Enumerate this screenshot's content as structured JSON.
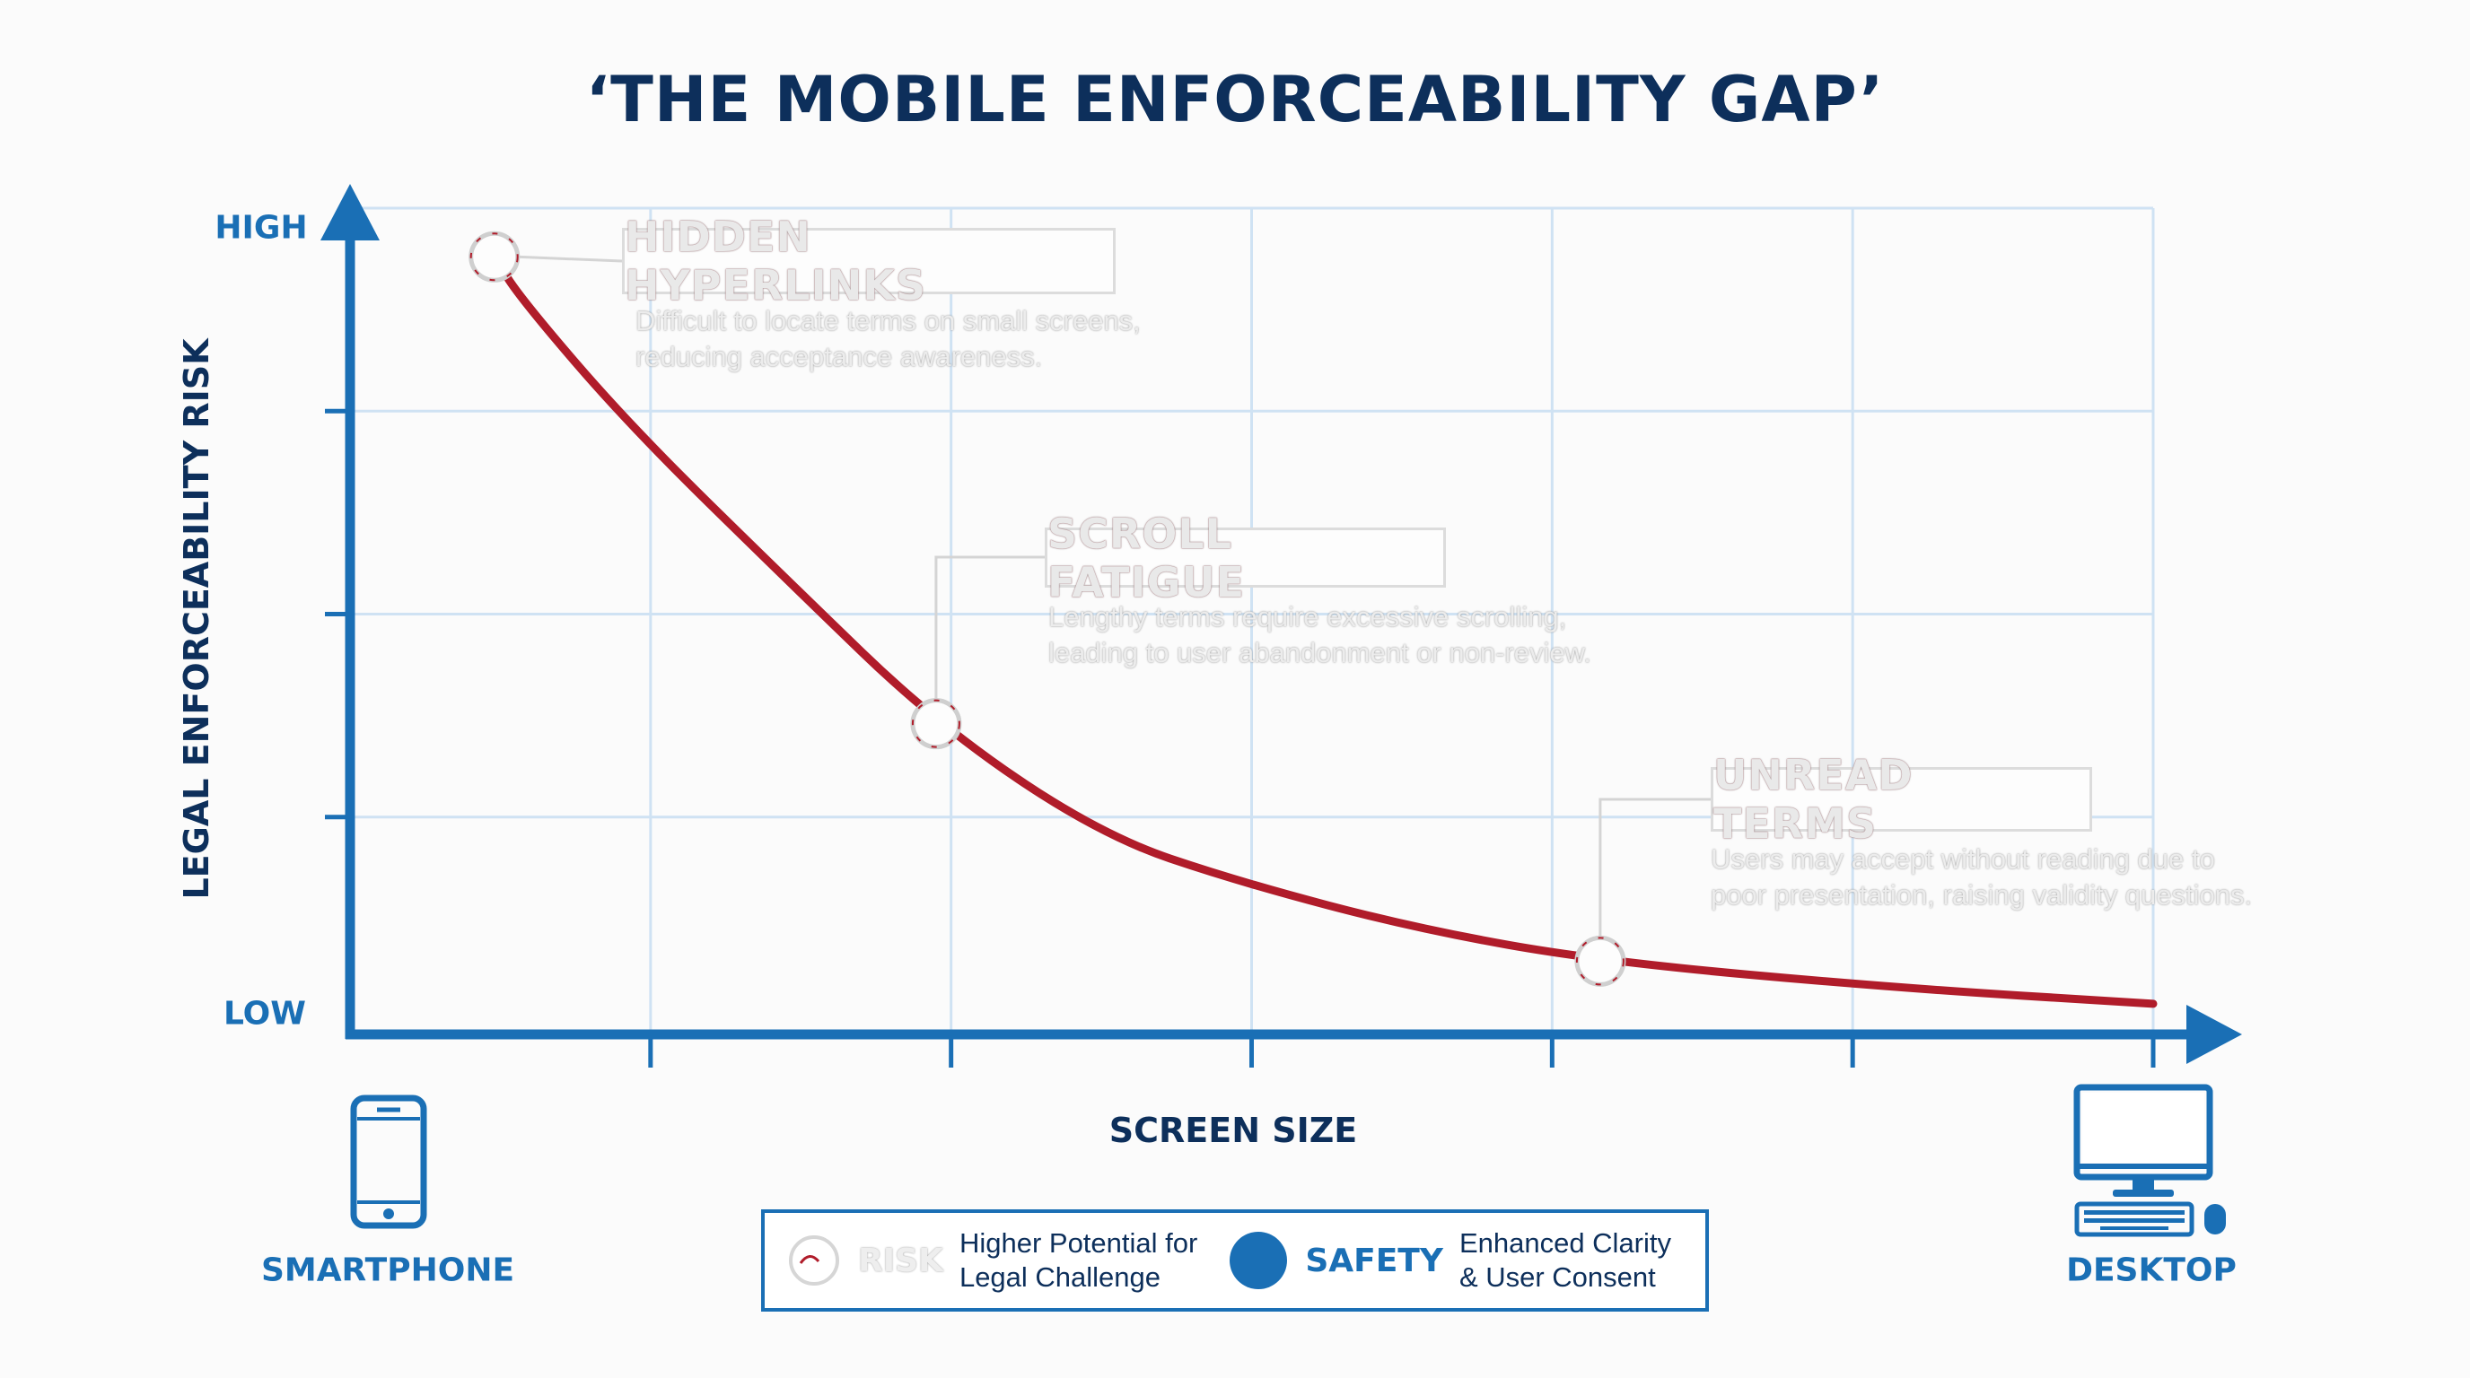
{
  "chart_data": {
    "type": "line",
    "title": "‘THE MOBILE ENFORCEABILITY GAP’",
    "xlabel": "SCREEN SIZE",
    "ylabel": "LEGAL ENFORCEABILITY RISK",
    "y_tick_labels": {
      "high": "HIGH",
      "low": "LOW"
    },
    "x_end_labels": {
      "start": "SMARTPHONE",
      "end": "DESKTOP"
    },
    "x_range": [
      0,
      6
    ],
    "y_range": [
      0,
      4
    ],
    "grid": true,
    "series": [
      {
        "points": [
          [
            0.48,
            3.76
          ],
          [
            0.57,
            3.55
          ],
          [
            0.93,
            2.93
          ],
          [
            1.46,
            2.16
          ],
          [
            1.95,
            1.46
          ],
          [
            2.5,
            0.91
          ],
          [
            2.96,
            0.68
          ],
          [
            3.55,
            0.45
          ],
          [
            4.16,
            0.29
          ],
          [
            5.13,
            0.16
          ],
          [
            6.0,
            0.08
          ]
        ],
        "color": "#b01c2a"
      }
    ],
    "annotations": [
      {
        "point": [
          0.48,
          3.76
        ],
        "title": "HIDDEN HYPERLINKS",
        "lines": [
          "Difficult to locate terms on small screens,",
          "reducing acceptance awareness."
        ]
      },
      {
        "point": [
          1.95,
          1.46
        ],
        "title": "SCROLL FATIGUE",
        "lines": [
          "Lengthy terms require excessive scrolling,",
          "leading to user abandonment or non-review."
        ]
      },
      {
        "point": [
          4.16,
          0.29
        ],
        "title": "UNREAD TERMS",
        "lines": [
          "Users may accept without reading due to",
          "poor presentation, raising validity questions."
        ]
      }
    ],
    "legend": {
      "placement": "bottom-center",
      "items": [
        {
          "key": "RISK",
          "text": [
            "Higher Potential for",
            "Legal Challenge"
          ],
          "color": "#b01c2a"
        },
        {
          "key": "SAFETY",
          "text": [
            "Enhanced Clarity",
            "& User Consent"
          ],
          "color": "#1a6fb5"
        }
      ]
    }
  },
  "colors": {
    "title": "#0d2f5b",
    "axis": "#1a6fb5",
    "grid": "#cfe2f3",
    "curve": "#b01c2a"
  },
  "icons": {
    "start": "smartphone-icon",
    "end": "desktop-icon"
  }
}
